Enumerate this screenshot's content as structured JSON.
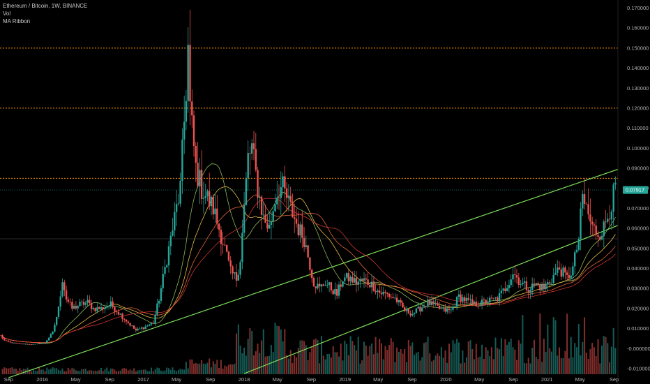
{
  "legend": {
    "symbol": "Ethereum / Bitcoin, 1W, BINANCE",
    "volume": "Vol",
    "ribbon": "MA Ribbon"
  },
  "colors": {
    "background": "#000000",
    "up_candle": "#26a69a",
    "down_candle": "#ef5350",
    "horizontal_level": "#ff9800",
    "trendline": "#7ee05a",
    "current_price_line": "#26a69a",
    "price_tag": "#26a69a",
    "ma_fast": "#9ccc65",
    "ma_2": "#ffd54f",
    "ma_3": "#ff7043",
    "ma_4": "#e53935"
  },
  "chart_data": {
    "type": "candlestick",
    "title": "Ethereum / Bitcoin, 1W, BINANCE",
    "x_axis": {
      "ticks": [
        "Sep",
        "2016",
        "May",
        "Sep",
        "2017",
        "May",
        "Sep",
        "2018",
        "May",
        "Sep",
        "2019",
        "May",
        "Sep",
        "2020",
        "May",
        "Sep",
        "2021",
        "May",
        "Sep"
      ],
      "tick_dates": [
        "2015-09-01",
        "2016-01-01",
        "2016-05-01",
        "2016-09-01",
        "2017-01-01",
        "2017-05-01",
        "2017-09-01",
        "2018-01-01",
        "2018-05-01",
        "2018-09-01",
        "2019-01-01",
        "2019-05-01",
        "2019-09-01",
        "2020-01-01",
        "2020-05-01",
        "2020-09-01",
        "2021-01-01",
        "2021-05-01",
        "2021-09-01"
      ],
      "range": [
        "2015-08-01",
        "2021-09-15"
      ]
    },
    "y_axis": {
      "ticks": [
        "0.170000",
        "0.160000",
        "0.150000",
        "0.140000",
        "0.130000",
        "0.120000",
        "0.110000",
        "0.100000",
        "0.090000",
        "0.080000",
        "0.070000",
        "0.060000",
        "0.050000",
        "0.040000",
        "0.030000",
        "0.020000",
        "0.010000",
        "-0.000000",
        "-0.010000"
      ],
      "range": [
        -0.0135,
        0.174
      ],
      "position": "right"
    },
    "current_price": 0.07917,
    "current_price_label": "0.07917",
    "horizontal_levels": [
      0.15,
      0.12,
      0.085
    ],
    "extra_grey_level": 0.0548,
    "trendlines": [
      {
        "name": "upper",
        "points": [
          [
            "2015-09-01",
            -0.0145
          ],
          [
            "2021-09-15",
            0.0895
          ]
        ]
      },
      {
        "name": "lower",
        "points": [
          [
            "2018-01-01",
            -0.0125
          ],
          [
            "2021-09-15",
            0.0615
          ]
        ]
      }
    ],
    "price_path": [
      [
        "2015-08-03",
        0.0065
      ],
      [
        "2015-08-17",
        0.004
      ],
      [
        "2015-09-07",
        0.003
      ],
      [
        "2015-10-05",
        0.0025
      ],
      [
        "2015-11-02",
        0.0022
      ],
      [
        "2015-12-07",
        0.0022
      ],
      [
        "2016-01-11",
        0.003
      ],
      [
        "2016-02-08",
        0.008
      ],
      [
        "2016-02-29",
        0.02
      ],
      [
        "2016-03-14",
        0.035
      ],
      [
        "2016-03-28",
        0.025
      ],
      [
        "2016-04-18",
        0.02
      ],
      [
        "2016-05-16",
        0.022
      ],
      [
        "2016-06-13",
        0.023
      ],
      [
        "2016-07-04",
        0.02
      ],
      [
        "2016-08-01",
        0.02
      ],
      [
        "2016-09-05",
        0.022
      ],
      [
        "2016-10-03",
        0.018
      ],
      [
        "2016-11-07",
        0.013
      ],
      [
        "2016-12-05",
        0.009
      ],
      [
        "2017-01-09",
        0.011
      ],
      [
        "2017-02-06",
        0.013
      ],
      [
        "2017-02-27",
        0.025
      ],
      [
        "2017-03-13",
        0.035
      ],
      [
        "2017-04-03",
        0.05
      ],
      [
        "2017-04-24",
        0.065
      ],
      [
        "2017-05-15",
        0.08
      ],
      [
        "2017-06-05",
        0.13
      ],
      [
        "2017-06-12",
        0.15
      ],
      [
        "2017-06-19",
        0.12
      ],
      [
        "2017-07-10",
        0.09
      ],
      [
        "2017-07-31",
        0.08
      ],
      [
        "2017-08-21",
        0.075
      ],
      [
        "2017-09-11",
        0.07
      ],
      [
        "2017-10-02",
        0.06
      ],
      [
        "2017-10-23",
        0.05
      ],
      [
        "2017-11-13",
        0.038
      ],
      [
        "2017-12-04",
        0.035
      ],
      [
        "2017-12-18",
        0.045
      ],
      [
        "2018-01-01",
        0.07
      ],
      [
        "2018-01-15",
        0.095
      ],
      [
        "2018-01-29",
        0.1
      ],
      [
        "2018-02-19",
        0.08
      ],
      [
        "2018-03-12",
        0.065
      ],
      [
        "2018-04-02",
        0.06
      ],
      [
        "2018-04-23",
        0.075
      ],
      [
        "2018-05-07",
        0.08
      ],
      [
        "2018-05-21",
        0.08
      ],
      [
        "2018-06-18",
        0.07
      ],
      [
        "2018-07-16",
        0.06
      ],
      [
        "2018-08-06",
        0.055
      ],
      [
        "2018-08-27",
        0.042
      ],
      [
        "2018-09-10",
        0.033
      ],
      [
        "2018-10-01",
        0.03
      ],
      [
        "2018-10-22",
        0.033
      ],
      [
        "2018-11-12",
        0.03
      ],
      [
        "2018-12-03",
        0.027
      ],
      [
        "2018-12-24",
        0.035
      ],
      [
        "2019-01-14",
        0.035
      ],
      [
        "2019-02-11",
        0.033
      ],
      [
        "2019-03-11",
        0.034
      ],
      [
        "2019-04-08",
        0.032
      ],
      [
        "2019-05-06",
        0.028
      ],
      [
        "2019-06-03",
        0.027
      ],
      [
        "2019-07-01",
        0.025
      ],
      [
        "2019-08-05",
        0.019
      ],
      [
        "2019-09-02",
        0.0175
      ],
      [
        "2019-09-30",
        0.02
      ],
      [
        "2019-10-28",
        0.023
      ],
      [
        "2019-11-25",
        0.021
      ],
      [
        "2019-12-23",
        0.019
      ],
      [
        "2020-01-20",
        0.019
      ],
      [
        "2020-02-17",
        0.026
      ],
      [
        "2020-03-16",
        0.024
      ],
      [
        "2020-04-13",
        0.022
      ],
      [
        "2020-05-11",
        0.023
      ],
      [
        "2020-06-08",
        0.024
      ],
      [
        "2020-07-06",
        0.025
      ],
      [
        "2020-08-03",
        0.03
      ],
      [
        "2020-08-31",
        0.038
      ],
      [
        "2020-09-28",
        0.033
      ],
      [
        "2020-10-26",
        0.03
      ],
      [
        "2020-11-23",
        0.032
      ],
      [
        "2020-12-21",
        0.03
      ],
      [
        "2021-01-18",
        0.035
      ],
      [
        "2021-02-15",
        0.04
      ],
      [
        "2021-03-15",
        0.035
      ],
      [
        "2021-04-05",
        0.04
      ],
      [
        "2021-04-26",
        0.055
      ],
      [
        "2021-05-10",
        0.075
      ],
      [
        "2021-05-24",
        0.07
      ],
      [
        "2021-06-14",
        0.06
      ],
      [
        "2021-07-05",
        0.058
      ],
      [
        "2021-07-26",
        0.06
      ],
      [
        "2021-08-16",
        0.07
      ],
      [
        "2021-09-06",
        0.079
      ]
    ],
    "ma_ribbon_periods": [
      20,
      30,
      40,
      50
    ],
    "grid": false,
    "legend_position": "top-left"
  }
}
